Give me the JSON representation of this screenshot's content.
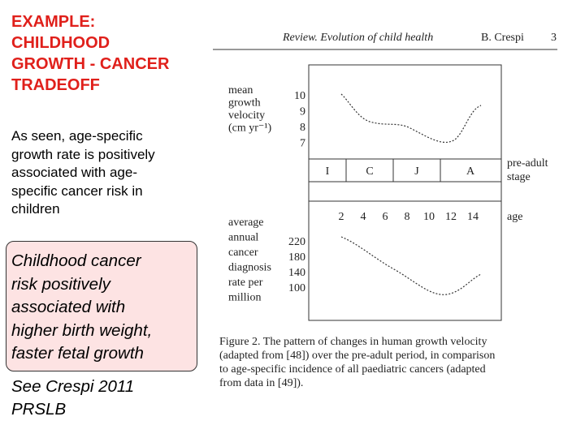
{
  "slide": {
    "title_lines": [
      "EXAMPLE:",
      "CHILDHOOD",
      "GROWTH - CANCER",
      "TRADEOFF"
    ],
    "body_lines": [
      "As seen, age-specific",
      "growth rate is positively",
      "associated with age-",
      "specific cancer risk in",
      "children"
    ],
    "box_lines": [
      "Childhood cancer",
      "risk positively",
      "associated with",
      "higher birth weight,",
      "faster fetal growth"
    ],
    "citation_lines": [
      "See Crespi 2011",
      "PRSLB"
    ]
  },
  "figure": {
    "header": "Review. Evolution of child health",
    "author": "B. Crespi",
    "page": "3",
    "upper_label_lines": [
      "mean",
      "growth",
      "velocity",
      "(cm yr⁻¹)"
    ],
    "upper_ticks": [
      "10",
      "9",
      "8",
      "7"
    ],
    "stages": [
      "I",
      "C",
      "J",
      "A"
    ],
    "stage_label_lines": [
      "pre-adult",
      "stage"
    ],
    "ages": [
      "2",
      "4",
      "6",
      "8",
      "10",
      "12",
      "14"
    ],
    "age_label": "age",
    "lower_label_lines": [
      "average",
      "annual",
      "cancer",
      "diagnosis",
      "rate per",
      "million"
    ],
    "lower_ticks": [
      "220",
      "180",
      "140",
      "100"
    ],
    "caption_lines": [
      "Figure 2.  The pattern of changes in human growth velocity",
      "(adapted from [48]) over the pre-adult period, in comparison",
      "to age-specific incidence of all paediatric cancers (adapted",
      "from data in [49])."
    ]
  }
}
